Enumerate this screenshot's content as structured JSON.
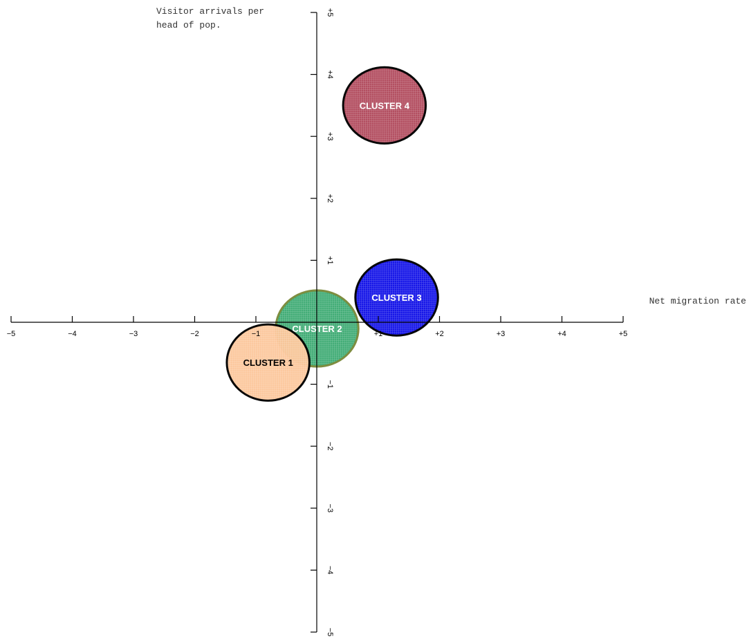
{
  "chart_data": {
    "type": "scatter",
    "xlabel": "Net migration rate",
    "ylabel_lines": [
      "Visitor arrivals per",
      "head of pop."
    ],
    "xlim": [
      -5,
      5
    ],
    "ylim": [
      -5,
      5
    ],
    "x_ticks": [
      "−5",
      "−4",
      "−3",
      "−2",
      "−1",
      "",
      "+1",
      "+2",
      "+3",
      "+4",
      "+5"
    ],
    "y_ticks": [
      "−5",
      "−4",
      "−3",
      "−2",
      "−1",
      "",
      "+1",
      "+2",
      "+3",
      "+4",
      "+5"
    ],
    "clusters": [
      {
        "name": "CLUSTER 2",
        "x": 0.0,
        "y": -0.1,
        "radius": 0.75,
        "fill": "#3dab73",
        "stroke": "#7a8a3a",
        "label_color": "#ffffff"
      },
      {
        "name": "CLUSTER 1",
        "x": -0.8,
        "y": -0.65,
        "radius": 0.75,
        "fill": "#fcc79b",
        "stroke": "#000000",
        "label_color": "#000000"
      },
      {
        "name": "CLUSTER 3",
        "x": 1.3,
        "y": 0.4,
        "radius": 0.75,
        "fill": "#1010e8",
        "stroke": "#000000",
        "label_color": "#ffffff"
      },
      {
        "name": "CLUSTER 4",
        "x": 1.1,
        "y": 3.5,
        "radius": 0.75,
        "fill": "#b14a5c",
        "stroke": "#000000",
        "label_color": "#ffffff"
      }
    ]
  }
}
